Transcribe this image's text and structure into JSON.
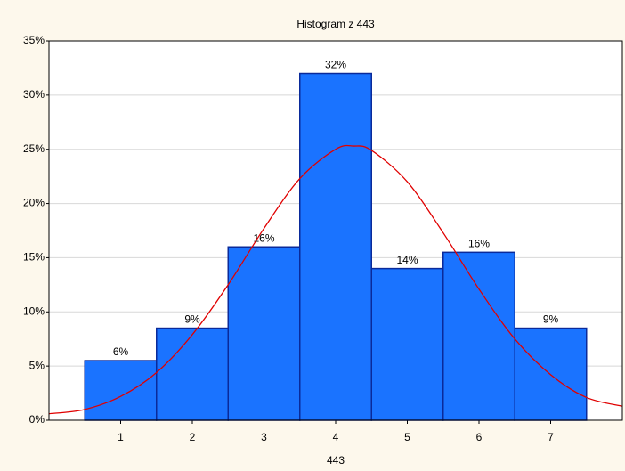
{
  "chart_data": {
    "type": "histogram",
    "title": "Histogram z 443",
    "x_label": "443",
    "bins": [
      0.5,
      1.5,
      2.5,
      3.5,
      4.5,
      5.5,
      6.5,
      7.5
    ],
    "values": [
      5.5,
      8.5,
      16,
      32,
      14,
      15.5,
      8.5
    ],
    "value_labels": [
      "6%",
      "9%",
      "16%",
      "32%",
      "14%",
      "16%",
      "9%"
    ],
    "color": "#1a73ff",
    "edge_color": "#0a2a9a",
    "curve": {
      "color": "#e00000",
      "x": [
        0,
        0.5,
        1,
        1.5,
        2,
        2.5,
        3,
        3.5,
        4,
        4.25,
        4.5,
        5,
        5.5,
        6,
        6.5,
        7,
        7.5,
        8
      ],
      "values": [
        0.6,
        1.0,
        2.2,
        4.4,
        7.9,
        12.5,
        17.7,
        22.3,
        25.0,
        25.3,
        24.9,
        22.0,
        17.3,
        12.1,
        7.5,
        4.2,
        2.1,
        1.3
      ]
    },
    "xlim": [
      0,
      8
    ],
    "xticks": [
      1,
      2,
      3,
      4,
      5,
      6,
      7
    ],
    "ylim": [
      0,
      35
    ],
    "yticks": [
      {
        "value": 0,
        "label": "0%"
      },
      {
        "value": 5,
        "label": "5%"
      },
      {
        "value": 10,
        "label": "10%"
      },
      {
        "value": 15,
        "label": "15%"
      },
      {
        "value": 20,
        "label": "20%"
      },
      {
        "value": 25,
        "label": "25%"
      },
      {
        "value": 30,
        "label": "30%"
      },
      {
        "value": 35,
        "label": "35%"
      }
    ],
    "grid": true
  }
}
